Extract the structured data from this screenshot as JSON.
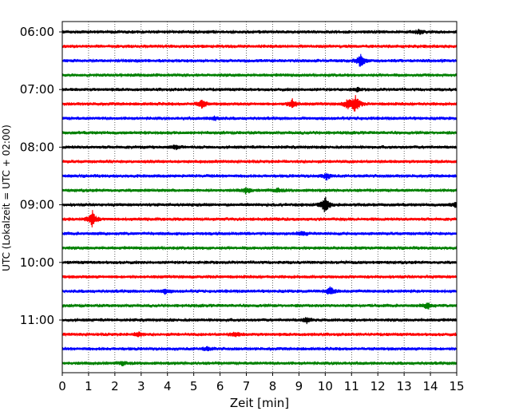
{
  "chart_data": {
    "type": "line",
    "xlabel": "Zeit  [min]",
    "ylabel": "UTC (Lokalzeit = UTC + 02:00)",
    "xlim": [
      0,
      15
    ],
    "x_ticks": [
      "0",
      "1",
      "2",
      "3",
      "4",
      "5",
      "6",
      "7",
      "8",
      "9",
      "10",
      "11",
      "12",
      "13",
      "14",
      "15"
    ],
    "y_ticks": [
      "06:00",
      "07:00",
      "08:00",
      "09:00",
      "10:00",
      "11:00"
    ],
    "grid": "vertical dotted",
    "colors": {
      "black": "#000000",
      "red": "#ff0000",
      "blue": "#0000ff",
      "green": "#008000"
    },
    "traces": [
      {
        "start": "06:00",
        "color": "black",
        "events": [
          {
            "t": 13.6,
            "amp": 0.25
          }
        ]
      },
      {
        "start": "06:15",
        "color": "red",
        "events": []
      },
      {
        "start": "06:30",
        "color": "blue",
        "events": [
          {
            "t": 11.35,
            "amp": 0.8
          }
        ]
      },
      {
        "start": "06:45",
        "color": "green",
        "events": []
      },
      {
        "start": "07:00",
        "color": "black",
        "events": [
          {
            "t": 11.2,
            "amp": 0.2
          }
        ]
      },
      {
        "start": "07:15",
        "color": "red",
        "events": [
          {
            "t": 5.3,
            "amp": 0.5
          },
          {
            "t": 8.75,
            "amp": 0.55
          },
          {
            "t": 10.85,
            "amp": 0.45
          },
          {
            "t": 11.15,
            "amp": 1.0
          }
        ]
      },
      {
        "start": "07:30",
        "color": "blue",
        "events": [
          {
            "t": 5.8,
            "amp": 0.2
          }
        ]
      },
      {
        "start": "07:45",
        "color": "green",
        "events": []
      },
      {
        "start": "08:00",
        "color": "black",
        "events": [
          {
            "t": 4.3,
            "amp": 0.2
          }
        ]
      },
      {
        "start": "08:15",
        "color": "red",
        "events": []
      },
      {
        "start": "08:30",
        "color": "blue",
        "events": [
          {
            "t": 10.05,
            "amp": 0.35
          }
        ]
      },
      {
        "start": "08:45",
        "color": "green",
        "events": [
          {
            "t": 7.0,
            "amp": 0.35
          },
          {
            "t": 8.2,
            "amp": 0.2
          }
        ]
      },
      {
        "start": "09:00",
        "color": "black",
        "events": [
          {
            "t": 10.0,
            "amp": 1.0
          },
          {
            "t": 14.95,
            "amp": 0.3
          }
        ]
      },
      {
        "start": "09:15",
        "color": "red",
        "events": [
          {
            "t": 1.15,
            "amp": 0.85
          }
        ]
      },
      {
        "start": "09:30",
        "color": "blue",
        "events": [
          {
            "t": 9.1,
            "amp": 0.25
          }
        ]
      },
      {
        "start": "09:45",
        "color": "green",
        "events": []
      },
      {
        "start": "10:00",
        "color": "black",
        "events": []
      },
      {
        "start": "10:15",
        "color": "red",
        "events": []
      },
      {
        "start": "10:30",
        "color": "blue",
        "events": [
          {
            "t": 10.2,
            "amp": 0.45
          },
          {
            "t": 3.9,
            "amp": 0.25
          }
        ]
      },
      {
        "start": "10:45",
        "color": "green",
        "events": [
          {
            "t": 13.9,
            "amp": 0.35
          }
        ]
      },
      {
        "start": "11:00",
        "color": "black",
        "events": [
          {
            "t": 9.3,
            "amp": 0.3
          }
        ]
      },
      {
        "start": "11:15",
        "color": "red",
        "events": [
          {
            "t": 2.9,
            "amp": 0.3
          },
          {
            "t": 6.6,
            "amp": 0.25
          }
        ]
      },
      {
        "start": "11:30",
        "color": "blue",
        "events": [
          {
            "t": 5.5,
            "amp": 0.2
          }
        ]
      },
      {
        "start": "11:45",
        "color": "green",
        "events": [
          {
            "t": 2.3,
            "amp": 0.2
          }
        ]
      }
    ]
  }
}
